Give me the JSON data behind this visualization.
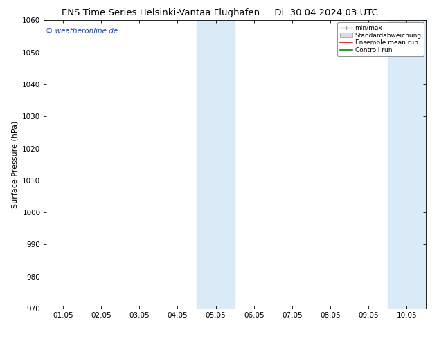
{
  "title_left": "ENS Time Series Helsinki-Vantaa Flughafen",
  "title_right": "Di. 30.04.2024 03 UTC",
  "ylabel": "Surface Pressure (hPa)",
  "ylim": [
    970,
    1060
  ],
  "yticks": [
    970,
    980,
    990,
    1000,
    1010,
    1020,
    1030,
    1040,
    1050,
    1060
  ],
  "xtick_labels": [
    "01.05",
    "02.05",
    "03.05",
    "04.05",
    "05.05",
    "06.05",
    "07.05",
    "08.05",
    "09.05",
    "10.05"
  ],
  "xtick_positions": [
    0,
    1,
    2,
    3,
    4,
    5,
    6,
    7,
    8,
    9
  ],
  "xlim": [
    -0.5,
    9.5
  ],
  "shaded_bands": [
    {
      "xmin": 3.5,
      "xmax": 4.5
    },
    {
      "xmin": 8.5,
      "xmax": 9.5
    }
  ],
  "band_color": "#daeaf7",
  "band_edge_color": "#b8d4ea",
  "watermark_text": "© weatheronline.de",
  "watermark_color": "#1a44aa",
  "legend_entries": [
    "min/max",
    "Standardabweichung",
    "Ensemble mean run",
    "Controll run"
  ],
  "legend_line_colors": [
    "#999999",
    "#cccccc",
    "#ff0000",
    "#008800"
  ],
  "background_color": "#ffffff",
  "title_fontsize": 9.5,
  "axis_fontsize": 8,
  "tick_fontsize": 7.5,
  "watermark_fontsize": 7.5
}
